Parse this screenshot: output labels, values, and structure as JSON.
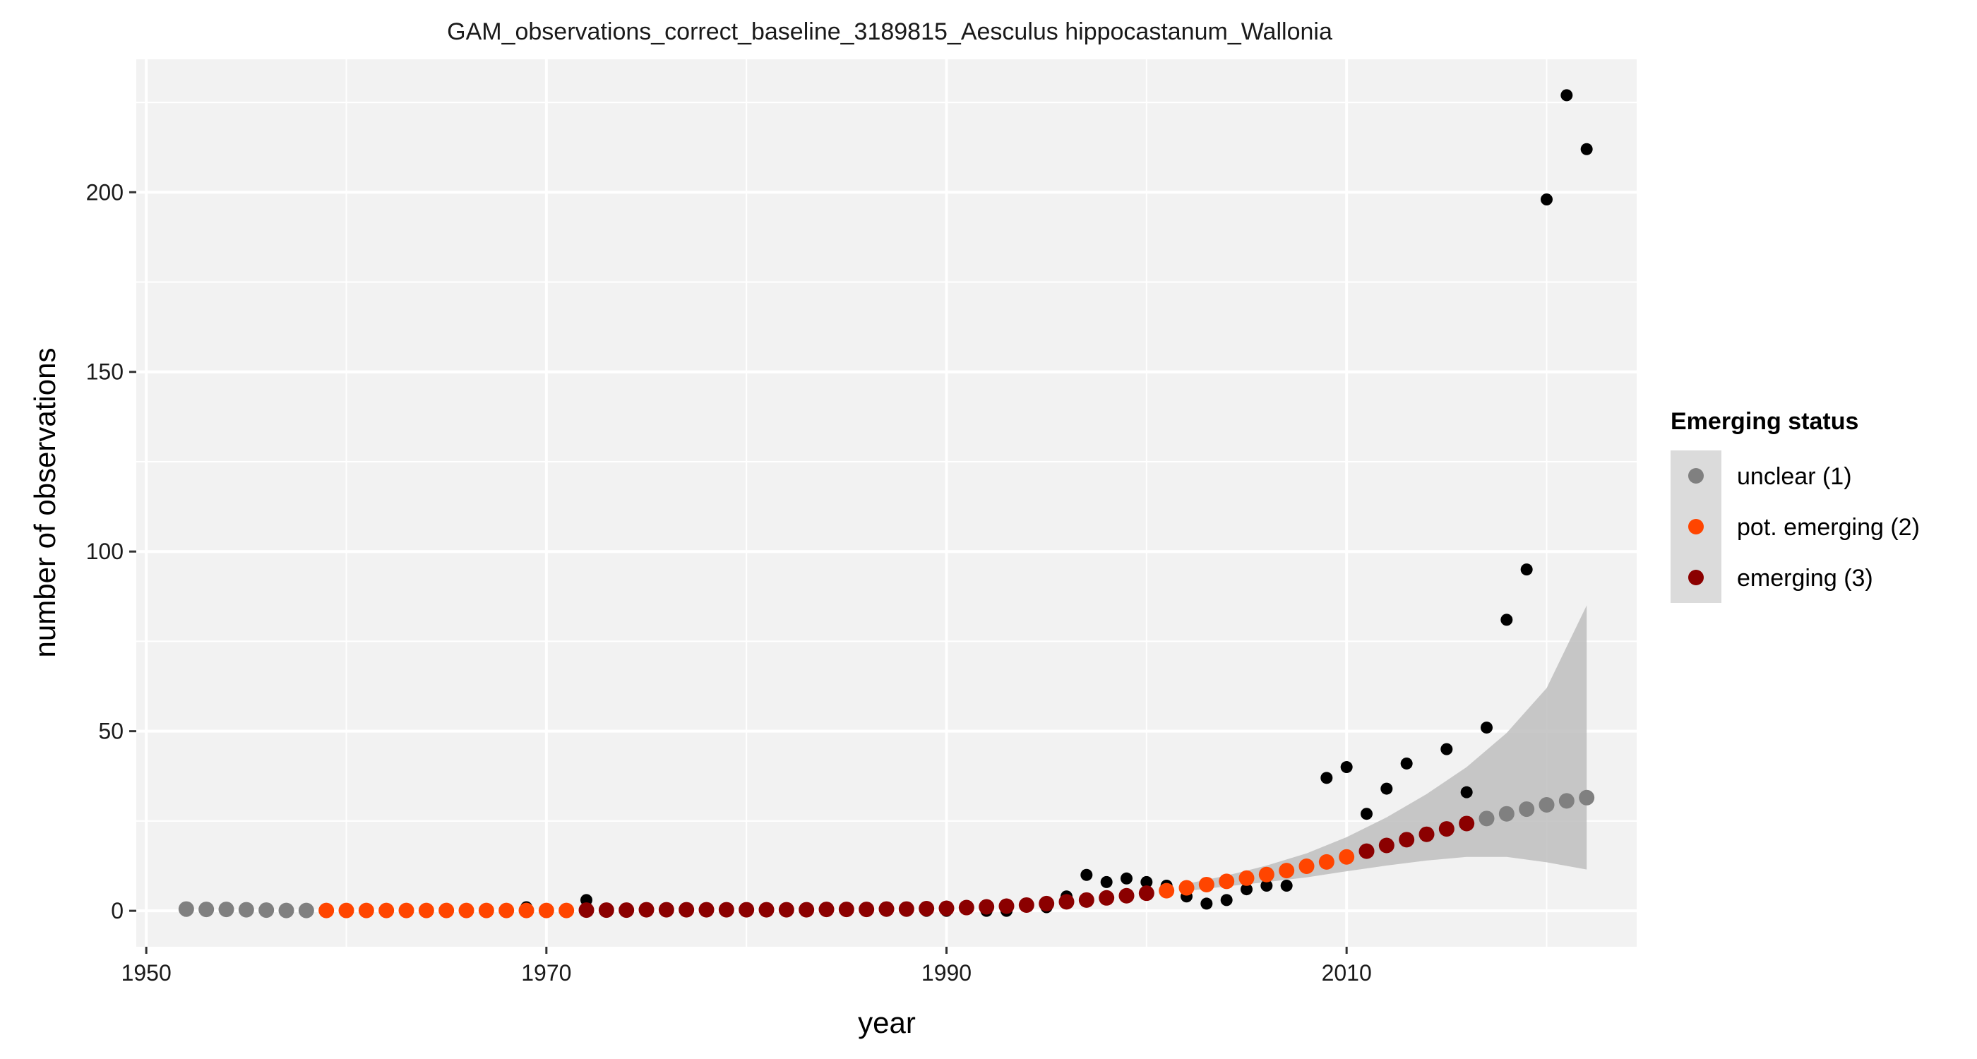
{
  "chart_data": {
    "type": "scatter",
    "title": "GAM_observations_correct_baseline_3189815_Aesculus hippocastanum_Wallonia",
    "xlabel": "year",
    "ylabel": "number of observations",
    "xlim": [
      1949.5,
      2024.5
    ],
    "ylim": [
      -10,
      237
    ],
    "x_ticks": [
      1950,
      1970,
      1990,
      2010
    ],
    "y_ticks": [
      0,
      50,
      100,
      150,
      200
    ],
    "x_tick_labels": [
      "1950",
      "1970",
      "1990",
      "2010"
    ],
    "y_tick_labels": [
      "0",
      "50",
      "100",
      "150",
      "200"
    ],
    "grid": true,
    "legend": {
      "title": "Emerging status",
      "placement": "right",
      "entries": [
        {
          "label": "unclear (1)",
          "color": "#808080"
        },
        {
          "label": "pot. emerging (2)",
          "color": "#FF4500"
        },
        {
          "label": "emerging (3)",
          "color": "#8B0000"
        }
      ]
    },
    "colors": {
      "panel_background": "#F2F2F2",
      "grid": "#FFFFFF",
      "observed": "#000000",
      "ribbon": "#BEBEBE",
      "status_1": "#808080",
      "status_2": "#FF4500",
      "status_3": "#8B0000"
    },
    "observed": {
      "name": "observations",
      "x": [
        1952,
        1953,
        1954,
        1955,
        1956,
        1957,
        1958,
        1959,
        1960,
        1961,
        1962,
        1963,
        1964,
        1965,
        1966,
        1967,
        1968,
        1969,
        1970,
        1971,
        1972,
        1973,
        1974,
        1975,
        1976,
        1977,
        1978,
        1979,
        1980,
        1981,
        1982,
        1983,
        1984,
        1985,
        1986,
        1987,
        1988,
        1989,
        1990,
        1991,
        1992,
        1993,
        1994,
        1995,
        1996,
        1997,
        1998,
        1999,
        2000,
        2001,
        2002,
        2003,
        2004,
        2005,
        2006,
        2007,
        2009,
        2010,
        2011,
        2012,
        2013,
        2015,
        2016,
        2017,
        2018,
        2019,
        2020,
        2021,
        2022
      ],
      "y": [
        0,
        0,
        0,
        0,
        0,
        0,
        0,
        0,
        0,
        0,
        0,
        0,
        0,
        0,
        0,
        0,
        0,
        1,
        0,
        0,
        3,
        0,
        0,
        0,
        0,
        0,
        0,
        0,
        0,
        0,
        0,
        0,
        0,
        0,
        0,
        0,
        0,
        0,
        0,
        1,
        0,
        0,
        2,
        1,
        4,
        10,
        8,
        9,
        8,
        7,
        4,
        2,
        3,
        6,
        7,
        7,
        37,
        40,
        27,
        34,
        41,
        45,
        33,
        51,
        81,
        95,
        198,
        227,
        212
      ]
    },
    "fitted": {
      "name": "GAM fit",
      "x": [
        1952,
        1953,
        1954,
        1955,
        1956,
        1957,
        1958,
        1959,
        1960,
        1961,
        1962,
        1963,
        1964,
        1965,
        1966,
        1967,
        1968,
        1969,
        1970,
        1971,
        1972,
        1973,
        1974,
        1975,
        1976,
        1977,
        1978,
        1979,
        1980,
        1981,
        1982,
        1983,
        1984,
        1985,
        1986,
        1987,
        1988,
        1989,
        1990,
        1991,
        1992,
        1993,
        1994,
        1995,
        1996,
        1997,
        1998,
        1999,
        2000,
        2001,
        2002,
        2003,
        2004,
        2005,
        2006,
        2007,
        2008,
        2009,
        2010,
        2011,
        2012,
        2013,
        2014,
        2015,
        2016,
        2017,
        2018,
        2019,
        2020,
        2021,
        2022
      ],
      "y": [
        0.5,
        0.4,
        0.4,
        0.3,
        0.2,
        0.1,
        0.1,
        0.1,
        0.1,
        0.1,
        0.1,
        0.1,
        0.1,
        0.1,
        0.1,
        0.1,
        0.1,
        0.1,
        0.1,
        0.1,
        0.2,
        0.2,
        0.2,
        0.3,
        0.3,
        0.3,
        0.3,
        0.3,
        0.3,
        0.3,
        0.3,
        0.3,
        0.4,
        0.4,
        0.4,
        0.5,
        0.5,
        0.6,
        0.7,
        0.9,
        1.1,
        1.3,
        1.6,
        2.0,
        2.5,
        3.0,
        3.6,
        4.2,
        4.9,
        5.6,
        6.4,
        7.3,
        8.2,
        9.1,
        10.1,
        11.2,
        12.4,
        13.6,
        15.0,
        16.6,
        18.2,
        19.8,
        21.3,
        22.8,
        24.3,
        25.7,
        27.0,
        28.3,
        29.5,
        30.6,
        31.5
      ],
      "status": [
        1,
        1,
        1,
        1,
        1,
        1,
        1,
        2,
        2,
        2,
        2,
        2,
        2,
        2,
        2,
        2,
        2,
        2,
        2,
        2,
        3,
        3,
        3,
        3,
        3,
        3,
        3,
        3,
        3,
        3,
        3,
        3,
        3,
        3,
        3,
        3,
        3,
        3,
        3,
        3,
        3,
        3,
        3,
        3,
        3,
        3,
        3,
        3,
        3,
        2,
        2,
        2,
        2,
        2,
        2,
        2,
        2,
        2,
        2,
        3,
        3,
        3,
        3,
        3,
        3,
        1,
        1,
        1,
        1,
        1,
        1
      ]
    },
    "confidence_band": {
      "x": [
        2002,
        2004,
        2006,
        2008,
        2010,
        2012,
        2014,
        2016,
        2018,
        2020,
        2022
      ],
      "lower": [
        5.5,
        6.8,
        8.0,
        9.3,
        11.0,
        12.6,
        14.0,
        15.0,
        15.0,
        13.5,
        11.5
      ],
      "upper": [
        7.5,
        9.8,
        12.6,
        16.0,
        20.5,
        26.0,
        32.5,
        40.0,
        49.5,
        62.0,
        85.0
      ]
    }
  }
}
